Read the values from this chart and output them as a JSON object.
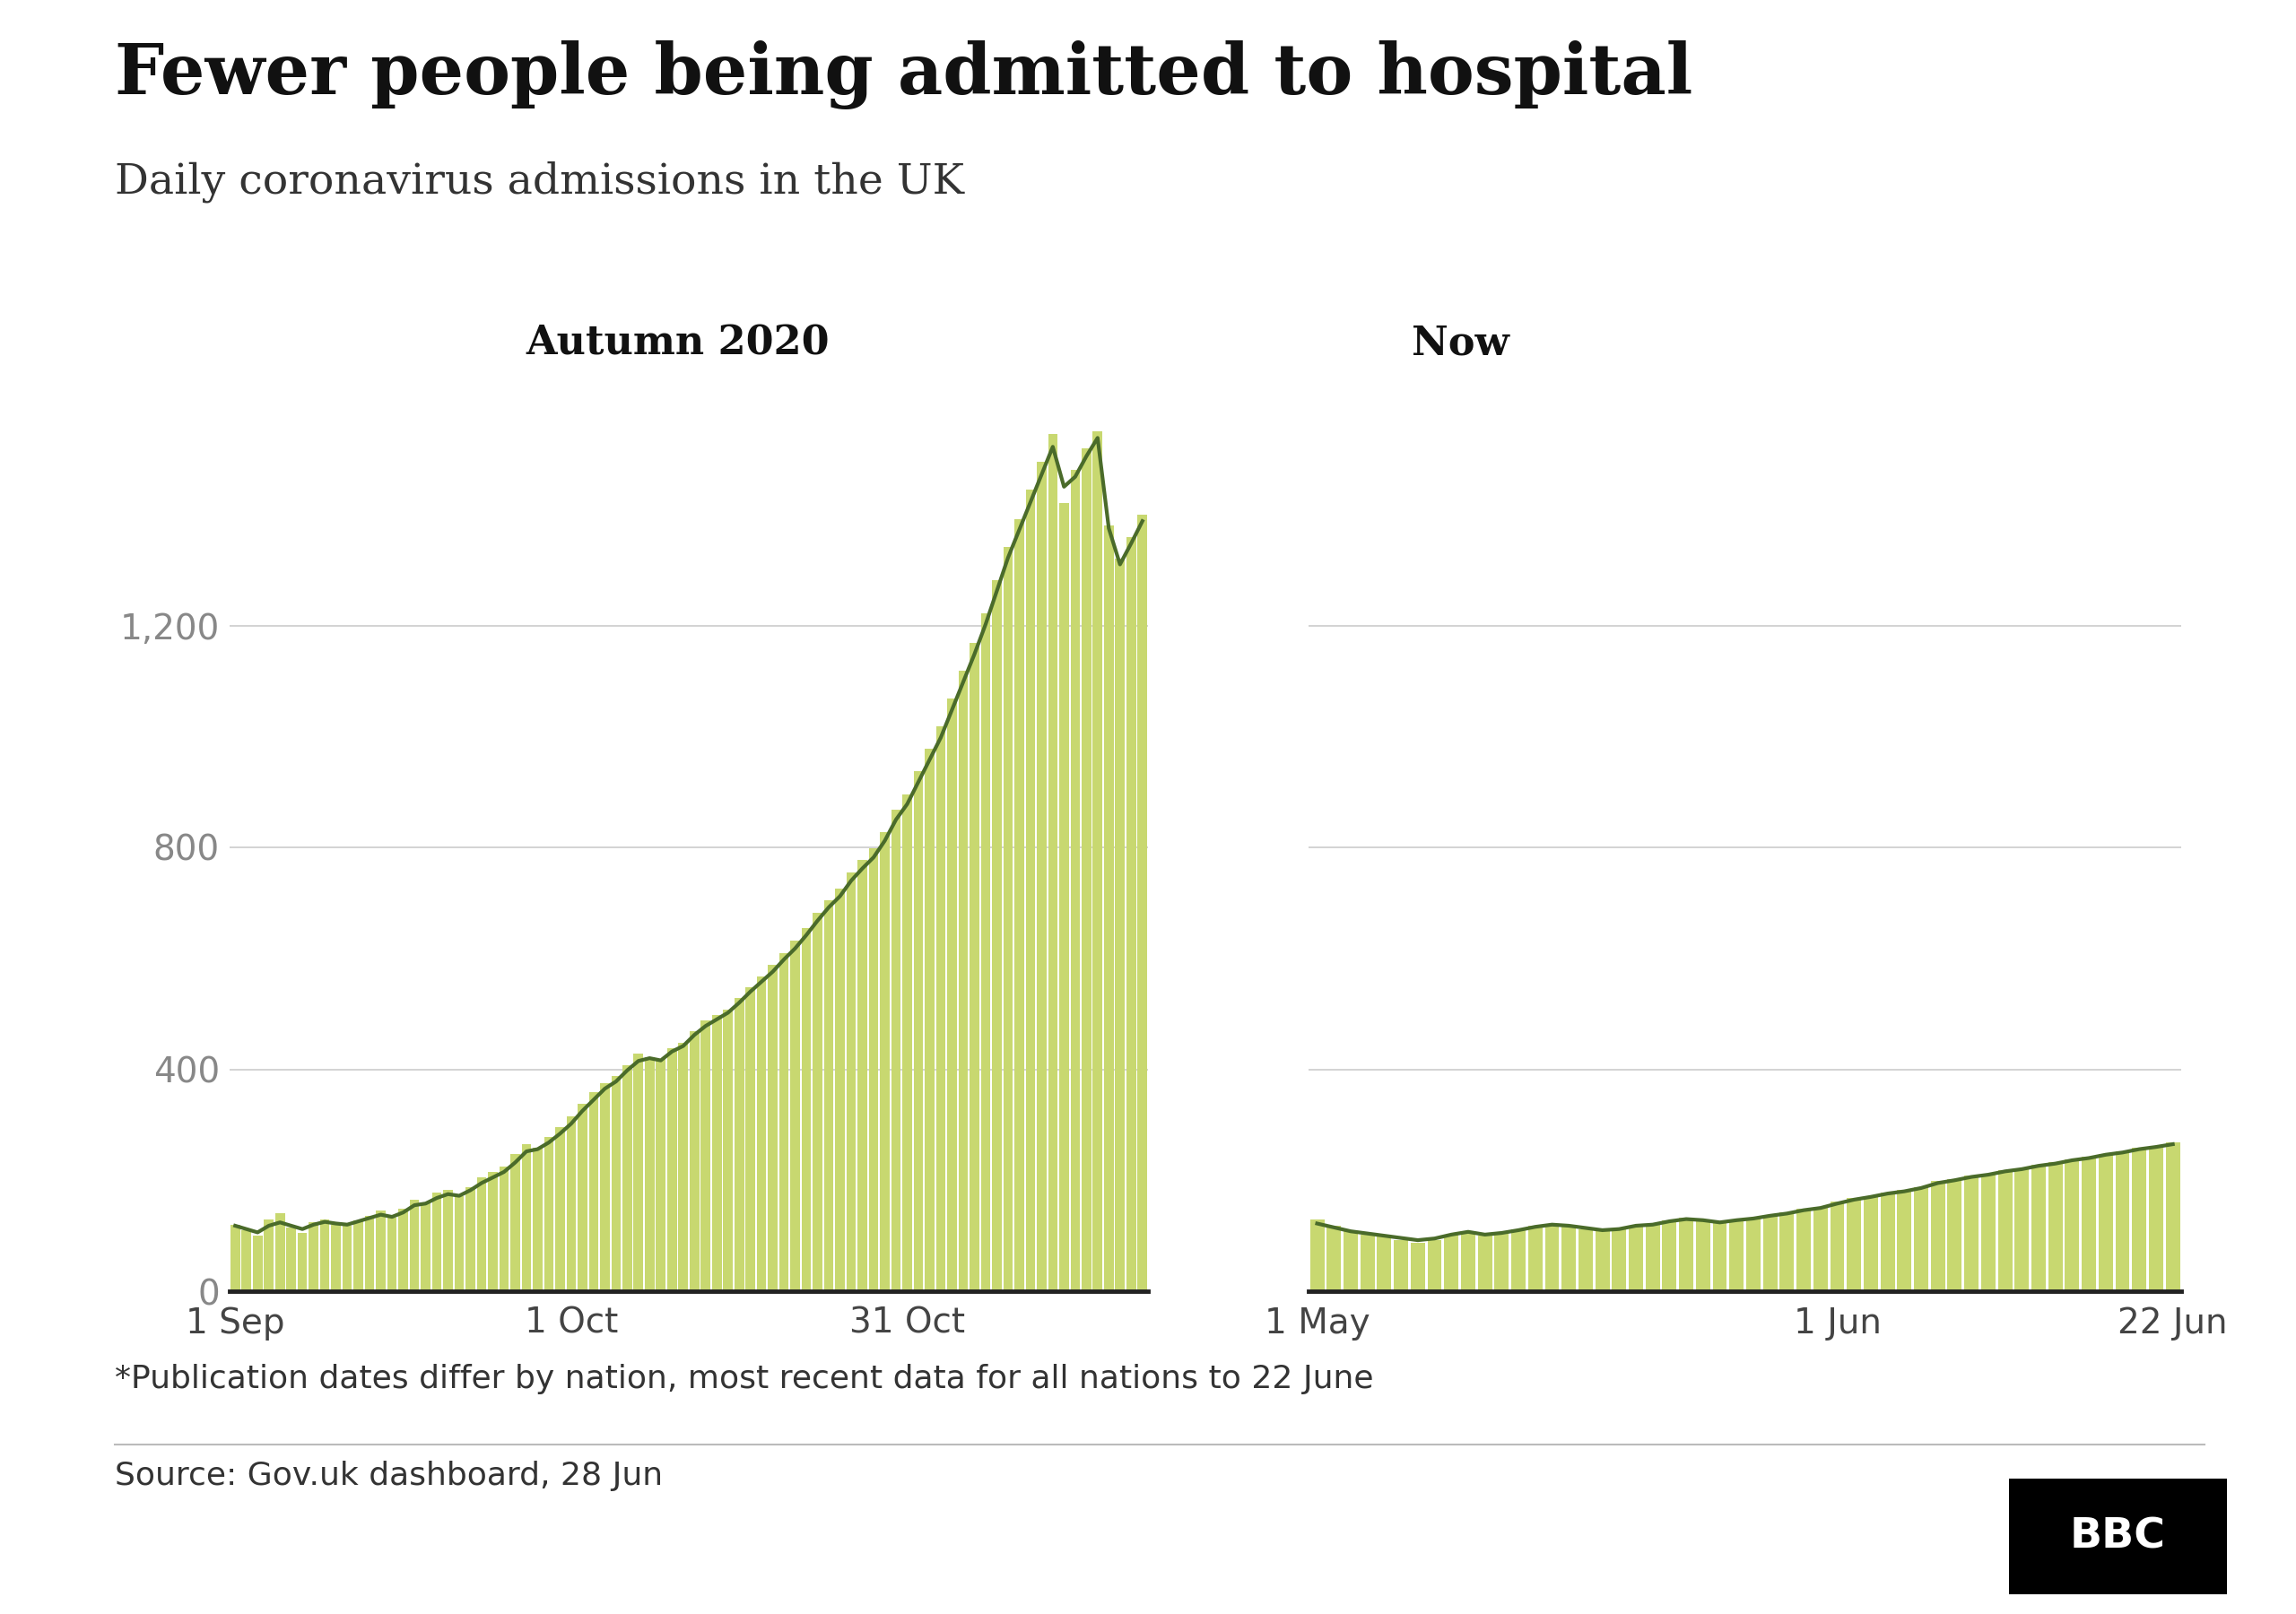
{
  "title": "Fewer people being admitted to hospital",
  "subtitle": "Daily coronavirus admissions in the UK",
  "footnote": "*Publication dates differ by nation, most recent data for all nations to 22 June",
  "source": "Source: Gov.uk dashboard, 28 Jun",
  "bar_color_light": "#c8d870",
  "line_color_dark": "#4a6b2a",
  "background_color": "#ffffff",
  "autumn_title": "Autumn 2020",
  "now_title": "Now",
  "autumn_xticks": [
    "1 Sep",
    "1 Oct",
    "31 Oct"
  ],
  "now_xticks": [
    "1 May",
    "1 Jun",
    "22 Jun"
  ],
  "ylim": [
    0,
    1600
  ],
  "yticks": [
    0,
    400,
    800,
    1200
  ],
  "ytick_labels": [
    "0",
    "400",
    "800",
    "1,200"
  ],
  "autumn_bars": [
    120,
    110,
    100,
    130,
    140,
    115,
    105,
    125,
    130,
    120,
    118,
    128,
    135,
    145,
    132,
    148,
    165,
    158,
    178,
    182,
    172,
    188,
    205,
    215,
    225,
    248,
    265,
    258,
    278,
    295,
    315,
    338,
    358,
    375,
    388,
    408,
    428,
    422,
    418,
    438,
    448,
    468,
    488,
    498,
    508,
    528,
    548,
    568,
    588,
    610,
    632,
    655,
    682,
    705,
    725,
    755,
    778,
    798,
    828,
    868,
    895,
    938,
    978,
    1018,
    1068,
    1118,
    1168,
    1222,
    1282,
    1342,
    1392,
    1445,
    1495,
    1545,
    1420,
    1480,
    1520,
    1550,
    1380,
    1320,
    1360,
    1400
  ],
  "autumn_line": [
    118,
    112,
    106,
    118,
    124,
    118,
    112,
    120,
    125,
    122,
    120,
    126,
    132,
    138,
    134,
    142,
    155,
    158,
    168,
    175,
    172,
    182,
    195,
    205,
    215,
    232,
    252,
    256,
    268,
    284,
    302,
    325,
    345,
    365,
    378,
    398,
    415,
    420,
    416,
    432,
    442,
    462,
    478,
    490,
    502,
    520,
    540,
    558,
    576,
    598,
    618,
    642,
    668,
    692,
    712,
    740,
    762,
    782,
    812,
    850,
    878,
    918,
    958,
    998,
    1048,
    1098,
    1148,
    1202,
    1262,
    1322,
    1372,
    1422,
    1472,
    1522,
    1450,
    1468,
    1505,
    1538,
    1375,
    1310,
    1348,
    1388
  ],
  "now_bars": [
    130,
    118,
    108,
    102,
    98,
    92,
    88,
    92,
    102,
    108,
    100,
    105,
    112,
    118,
    122,
    120,
    112,
    108,
    112,
    118,
    122,
    128,
    132,
    128,
    125,
    128,
    132,
    138,
    142,
    148,
    152,
    162,
    168,
    172,
    178,
    182,
    188,
    198,
    202,
    208,
    212,
    218,
    222,
    228,
    232,
    238,
    242,
    248,
    252,
    258,
    262,
    268
  ],
  "now_line": [
    122,
    115,
    108,
    104,
    100,
    96,
    92,
    95,
    102,
    107,
    102,
    105,
    110,
    116,
    120,
    118,
    114,
    110,
    112,
    118,
    120,
    126,
    130,
    128,
    124,
    128,
    131,
    136,
    140,
    146,
    150,
    158,
    165,
    170,
    176,
    180,
    186,
    195,
    200,
    206,
    210,
    216,
    220,
    226,
    230,
    236,
    240,
    246,
    250,
    256,
    260,
    265
  ]
}
